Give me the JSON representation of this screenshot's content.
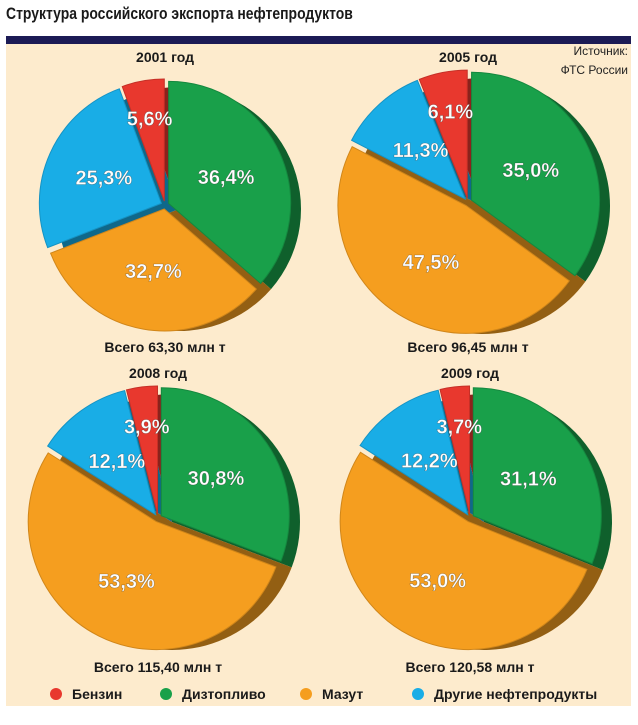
{
  "title": "Структура российского экспорта нефтепродуктов",
  "source": {
    "label": "Источник:",
    "value": "ФТС России"
  },
  "colors": {
    "Бензин": "#e8382e",
    "Дизтопливо": "#19a04a",
    "Мазут": "#f59e1f",
    "Другие нефтепродукты": "#19ade6"
  },
  "legend": [
    "Бензин",
    "Дизтопливо",
    "Мазут",
    "Другие нефтепродукты"
  ],
  "chart_data": [
    {
      "type": "pie",
      "title": "2001 год",
      "total": "Всего 63,30 млн т",
      "categories": [
        "Дизтопливо",
        "Мазут",
        "Другие нефтепродукты",
        "Бензин"
      ],
      "values": [
        36.4,
        32.7,
        25.3,
        5.6
      ],
      "labels": [
        "36,4%",
        "32,7%",
        "25,3%",
        "5,6%"
      ]
    },
    {
      "type": "pie",
      "title": "2005 год",
      "total": "Всего 96,45 млн т",
      "categories": [
        "Дизтопливо",
        "Мазут",
        "Другие нефтепродукты",
        "Бензин"
      ],
      "values": [
        35.0,
        47.5,
        11.3,
        6.1
      ],
      "labels": [
        "35,0%",
        "47,5%",
        "11,3%",
        "6,1%"
      ]
    },
    {
      "type": "pie",
      "title": "2008 год",
      "total": "Всего 115,40 млн т",
      "categories": [
        "Дизтопливо",
        "Мазут",
        "Другие нефтепродукты",
        "Бензин"
      ],
      "values": [
        30.8,
        53.3,
        12.1,
        3.9
      ],
      "labels": [
        "30,8%",
        "53,3%",
        "12,1%",
        "3,9%"
      ]
    },
    {
      "type": "pie",
      "title": "2009 год",
      "total": "Всего 120,58 млн т",
      "categories": [
        "Дизтопливо",
        "Мазут",
        "Другие нефтепродукты",
        "Бензин"
      ],
      "values": [
        31.1,
        53.0,
        12.2,
        3.7
      ],
      "labels": [
        "31,1%",
        "53,0%",
        "12,2%",
        "3,7%"
      ]
    }
  ]
}
